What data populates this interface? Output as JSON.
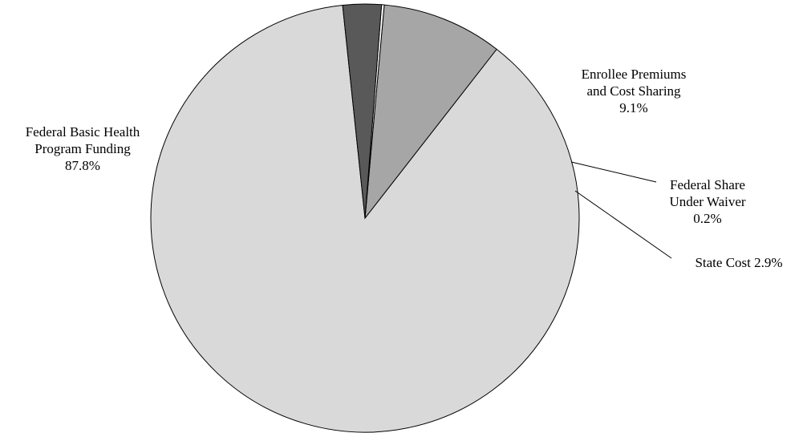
{
  "chart_data": {
    "type": "pie",
    "title": "",
    "slices": [
      {
        "label_lines": [
          "Federal Basic Health",
          "Program Funding",
          "87.8%"
        ],
        "name": "Federal Basic Health Program Funding",
        "value": 87.8,
        "color": "#d9d9d9"
      },
      {
        "label_lines": [
          "Enrollee Premiums",
          "and Cost Sharing",
          "9.1%"
        ],
        "name": "Enrollee Premiums and Cost Sharing",
        "value": 9.1,
        "color": "#a6a6a6"
      },
      {
        "label_lines": [
          "Federal Share",
          "Under Waiver",
          "0.2%"
        ],
        "name": "Federal Share Under Waiver",
        "value": 0.2,
        "color": "#ffffff"
      },
      {
        "label_lines": [
          "State Cost 2.9%"
        ],
        "name": "State Cost",
        "value": 2.9,
        "color": "#595959"
      }
    ],
    "legend": "none"
  }
}
